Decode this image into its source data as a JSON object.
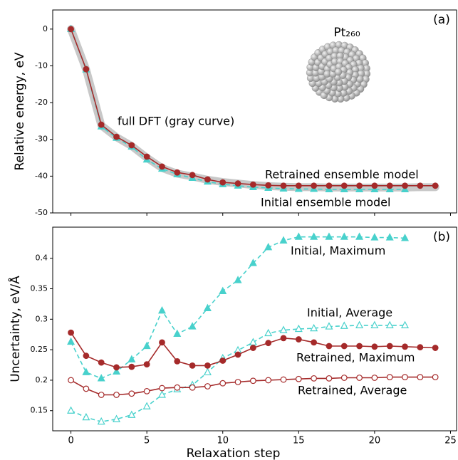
{
  "chart_data": [
    {
      "type": "line",
      "panel_label": "(a)",
      "particle_label": "Pt₂₆₀",
      "ylabel": "Relative energy, eV",
      "xlim": [
        -1.2,
        25.4
      ],
      "xticks": [
        0,
        5,
        10,
        15,
        20,
        25
      ],
      "ylim": [
        -50,
        5.2
      ],
      "yticks": [
        0,
        -10,
        -20,
        -30,
        -40,
        -50
      ],
      "series": [
        {
          "name": "full DFT (gray curve)",
          "color": "#c8c8c8",
          "style": "band",
          "x": [
            0,
            1,
            2,
            3,
            4,
            5,
            6,
            7,
            8,
            9,
            10,
            11,
            12,
            13,
            14,
            15,
            16,
            17,
            18,
            19,
            20,
            21,
            22,
            23,
            24
          ],
          "values": [
            0,
            -11,
            -26.2,
            -29.4,
            -31.8,
            -35,
            -37.8,
            -39.3,
            -40.1,
            -41,
            -41.6,
            -42,
            -42.4,
            -42.7,
            -42.9,
            -43,
            -43,
            -43.1,
            -43.1,
            -43.1,
            -43.1,
            -43.1,
            -43.1,
            -43,
            -43
          ]
        },
        {
          "name": "Initial ensemble model",
          "color": "#48d1cc",
          "marker": "triangle",
          "filled": true,
          "dashed": true,
          "x": [
            0,
            1,
            2,
            3,
            4,
            5,
            6,
            7,
            8,
            9,
            10,
            11,
            12,
            13,
            14,
            15,
            16,
            17,
            18,
            19,
            20,
            21,
            22
          ],
          "values": [
            0,
            -11,
            -26.5,
            -29.6,
            -32,
            -35.5,
            -38,
            -39.5,
            -40.5,
            -41.5,
            -42.2,
            -42.6,
            -43,
            -43.2,
            -43.4,
            -43.5,
            -43.5,
            -43.6,
            -43.6,
            -43.6,
            -43.6,
            -43.6,
            -43.6
          ]
        },
        {
          "name": "Retrained ensemble model",
          "color": "#a52a2a",
          "marker": "circle",
          "filled": true,
          "dashed": false,
          "x": [
            0,
            1,
            2,
            3,
            4,
            5,
            6,
            7,
            8,
            9,
            10,
            11,
            12,
            13,
            14,
            15,
            16,
            17,
            18,
            19,
            20,
            21,
            22,
            23,
            24
          ],
          "values": [
            0,
            -10.9,
            -26,
            -29.3,
            -31.6,
            -34.7,
            -37.4,
            -39,
            -39.7,
            -40.9,
            -41.7,
            -42,
            -42.3,
            -42.5,
            -42.6,
            -42.6,
            -42.6,
            -42.6,
            -42.6,
            -42.6,
            -42.6,
            -42.6,
            -42.6,
            -42.6,
            -42.6
          ]
        }
      ]
    },
    {
      "type": "line",
      "panel_label": "(b)",
      "xlabel": "Relaxation step",
      "ylabel": "Uncertainty, eV/Å",
      "xlim": [
        -1.2,
        25.4
      ],
      "xticks": [
        0,
        5,
        10,
        15,
        20,
        25
      ],
      "ylim": [
        0.117,
        0.451
      ],
      "yticks": [
        0.15,
        0.2,
        0.25,
        0.3,
        0.35,
        0.4
      ],
      "series": [
        {
          "name": "Initial, Maximum",
          "color": "#48d1cc",
          "marker": "triangle",
          "filled": true,
          "dashed": true,
          "x": [
            0,
            1,
            2,
            3,
            4,
            5,
            6,
            7,
            8,
            9,
            10,
            11,
            12,
            13,
            14,
            15,
            16,
            17,
            18,
            19,
            20,
            21,
            22
          ],
          "values": [
            0.263,
            0.213,
            0.203,
            0.214,
            0.234,
            0.256,
            0.314,
            0.276,
            0.288,
            0.318,
            0.346,
            0.364,
            0.392,
            0.418,
            0.429,
            0.435,
            0.435,
            0.435,
            0.435,
            0.435,
            0.434,
            0.434,
            0.433
          ]
        },
        {
          "name": "Initial, Average",
          "color": "#48d1cc",
          "marker": "triangle",
          "filled": false,
          "dashed": true,
          "x": [
            0,
            1,
            2,
            3,
            4,
            5,
            6,
            7,
            8,
            9,
            10,
            11,
            12,
            13,
            14,
            15,
            16,
            17,
            18,
            19,
            20,
            21,
            22
          ],
          "values": [
            0.15,
            0.139,
            0.132,
            0.136,
            0.143,
            0.157,
            0.176,
            0.185,
            0.192,
            0.213,
            0.236,
            0.249,
            0.262,
            0.277,
            0.282,
            0.284,
            0.285,
            0.288,
            0.289,
            0.29,
            0.29,
            0.29,
            0.29
          ]
        },
        {
          "name": "Retrained, Maximum",
          "color": "#a52a2a",
          "marker": "circle",
          "filled": true,
          "dashed": false,
          "x": [
            0,
            1,
            2,
            3,
            4,
            5,
            6,
            7,
            8,
            9,
            10,
            11,
            12,
            13,
            14,
            15,
            16,
            17,
            18,
            19,
            20,
            21,
            22,
            23,
            24
          ],
          "values": [
            0.278,
            0.24,
            0.229,
            0.221,
            0.222,
            0.226,
            0.262,
            0.231,
            0.224,
            0.224,
            0.232,
            0.242,
            0.253,
            0.261,
            0.269,
            0.267,
            0.262,
            0.256,
            0.256,
            0.256,
            0.255,
            0.256,
            0.255,
            0.254,
            0.253
          ]
        },
        {
          "name": "Retrained, Average",
          "color": "#a52a2a",
          "marker": "circle",
          "filled": false,
          "dashed": false,
          "x": [
            0,
            1,
            2,
            3,
            4,
            5,
            6,
            7,
            8,
            9,
            10,
            11,
            12,
            13,
            14,
            15,
            16,
            17,
            18,
            19,
            20,
            21,
            22,
            23,
            24
          ],
          "values": [
            0.2,
            0.186,
            0.176,
            0.176,
            0.178,
            0.182,
            0.187,
            0.188,
            0.188,
            0.19,
            0.195,
            0.197,
            0.199,
            0.2,
            0.201,
            0.202,
            0.203,
            0.203,
            0.204,
            0.204,
            0.204,
            0.205,
            0.205,
            0.205,
            0.205
          ]
        }
      ]
    }
  ]
}
